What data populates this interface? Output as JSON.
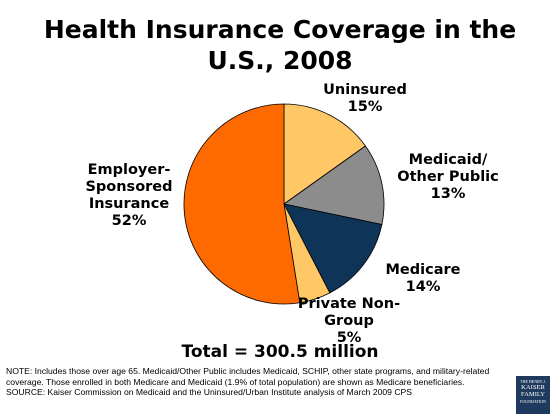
{
  "chart_data": {
    "type": "pie",
    "title": "Health Insurance Coverage in the U.S., 2008",
    "slices": [
      {
        "name": "Uninsured",
        "value": 15,
        "label": "Uninsured\n15%",
        "color": "#FFC766"
      },
      {
        "name": "Medicaid/ Other Public",
        "value": 13,
        "label": "Medicaid/\nOther Public\n13%",
        "color": "#8C8C8C"
      },
      {
        "name": "Medicare",
        "value": 14,
        "label": "Medicare\n14%",
        "color": "#0E3557"
      },
      {
        "name": "Private Non-Group",
        "value": 5,
        "label": "Private Non-\nGroup\n5%",
        "color": "#FFC766"
      },
      {
        "name": "Employer-Sponsored Insurance",
        "value": 52,
        "label": "Employer-\nSponsored\nInsurance\n52%",
        "color": "#FF6A00"
      }
    ],
    "total": "Total = 300.5 million"
  },
  "notes": {
    "note": "NOTE: Includes those over age 65. Medicaid/Other Public includes Medicaid, SCHIP, other state programs, and military-related coverage. Those enrolled in both Medicare and Medicaid (1.9% of total population) are shown as Medicare beneficiaries.",
    "source": "SOURCE: Kaiser Commission on Medicaid and the Uninsured/Urban Institute analysis of March 2009 CPS"
  },
  "logo": {
    "line1": "THE HENRY J.",
    "line2": "KAISER",
    "line3": "FAMILY",
    "line4": "FOUNDATION"
  }
}
